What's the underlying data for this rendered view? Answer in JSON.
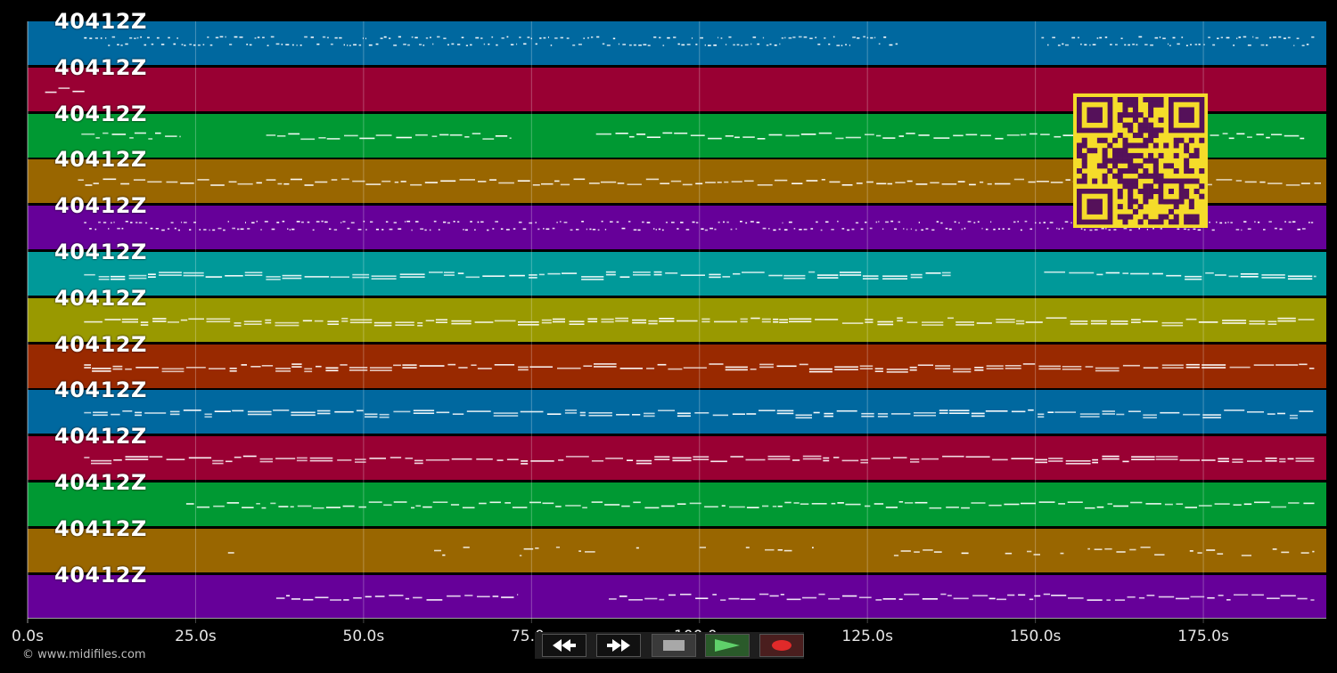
{
  "app": {
    "background": "#000000"
  },
  "lanes": [
    {
      "label": "40412Z",
      "color": "#00689f",
      "style": "dots",
      "segments": [
        [
          8.4,
          129.5
        ],
        [
          150.9,
          191.5
        ]
      ]
    },
    {
      "label": "40412Z",
      "color": "#990033",
      "style": "short",
      "segments": [
        [
          2.6,
          8.6
        ]
      ]
    },
    {
      "label": "40412Z",
      "color": "#009933",
      "style": "wavy",
      "segments": [
        [
          8,
          22.8
        ],
        [
          35.5,
          72
        ],
        [
          84.6,
          190
        ]
      ]
    },
    {
      "label": "40412Z",
      "color": "#996600",
      "style": "wavy",
      "segments": [
        [
          7.5,
          192.5
        ]
      ]
    },
    {
      "label": "40412Z",
      "color": "#660099",
      "style": "dots",
      "segments": [
        [
          8.4,
          191.5
        ]
      ]
    },
    {
      "label": "40412Z",
      "color": "#009999",
      "style": "dense",
      "segments": [
        [
          8.4,
          137.4
        ],
        [
          151.3,
          191.8
        ]
      ]
    },
    {
      "label": "40412Z",
      "color": "#999900",
      "style": "dense",
      "segments": [
        [
          8.4,
          191.5
        ]
      ]
    },
    {
      "label": "40412Z",
      "color": "#992900",
      "style": "dense",
      "segments": [
        [
          8.4,
          191.5
        ]
      ]
    },
    {
      "label": "40412Z",
      "color": "#00689f",
      "style": "dense",
      "segments": [
        [
          8.4,
          191.5
        ]
      ]
    },
    {
      "label": "40412Z",
      "color": "#990033",
      "style": "dense",
      "segments": [
        [
          8.4,
          191.5
        ]
      ]
    },
    {
      "label": "40412Z",
      "color": "#009933",
      "style": "wavy",
      "segments": [
        [
          23.6,
          191.5
        ]
      ]
    },
    {
      "label": "40412Z",
      "color": "#996600",
      "style": "sparse",
      "segments": [
        [
          27,
          31
        ],
        [
          60.5,
          91
        ],
        [
          100,
          117
        ],
        [
          124.5,
          191.5
        ]
      ]
    },
    {
      "label": "40412Z",
      "color": "#660099",
      "style": "wavy",
      "segments": [
        [
          37,
          73
        ],
        [
          86.5,
          191.5
        ]
      ]
    }
  ],
  "timeline": {
    "range": [
      0,
      193.3
    ],
    "ticks": [
      {
        "value": 0,
        "label": "0.0s"
      },
      {
        "value": 25,
        "label": "25.0s"
      },
      {
        "value": 50,
        "label": "50.0s"
      },
      {
        "value": 75,
        "label": "75.0s"
      },
      {
        "value": 100,
        "label": "100.0s"
      },
      {
        "value": 125,
        "label": "125.0s"
      },
      {
        "value": 150,
        "label": "150.0s"
      },
      {
        "value": 175,
        "label": "175.0s"
      }
    ]
  },
  "copyright": "© www.midifiles.com",
  "qr": {
    "background": "#f5dc2a",
    "foreground": "#55115a"
  },
  "controls": {
    "rewind": "rewind-icon",
    "fast_forward": "fast-forward-icon",
    "stop": "stop-icon",
    "play": "play-icon",
    "record": "record-icon"
  }
}
